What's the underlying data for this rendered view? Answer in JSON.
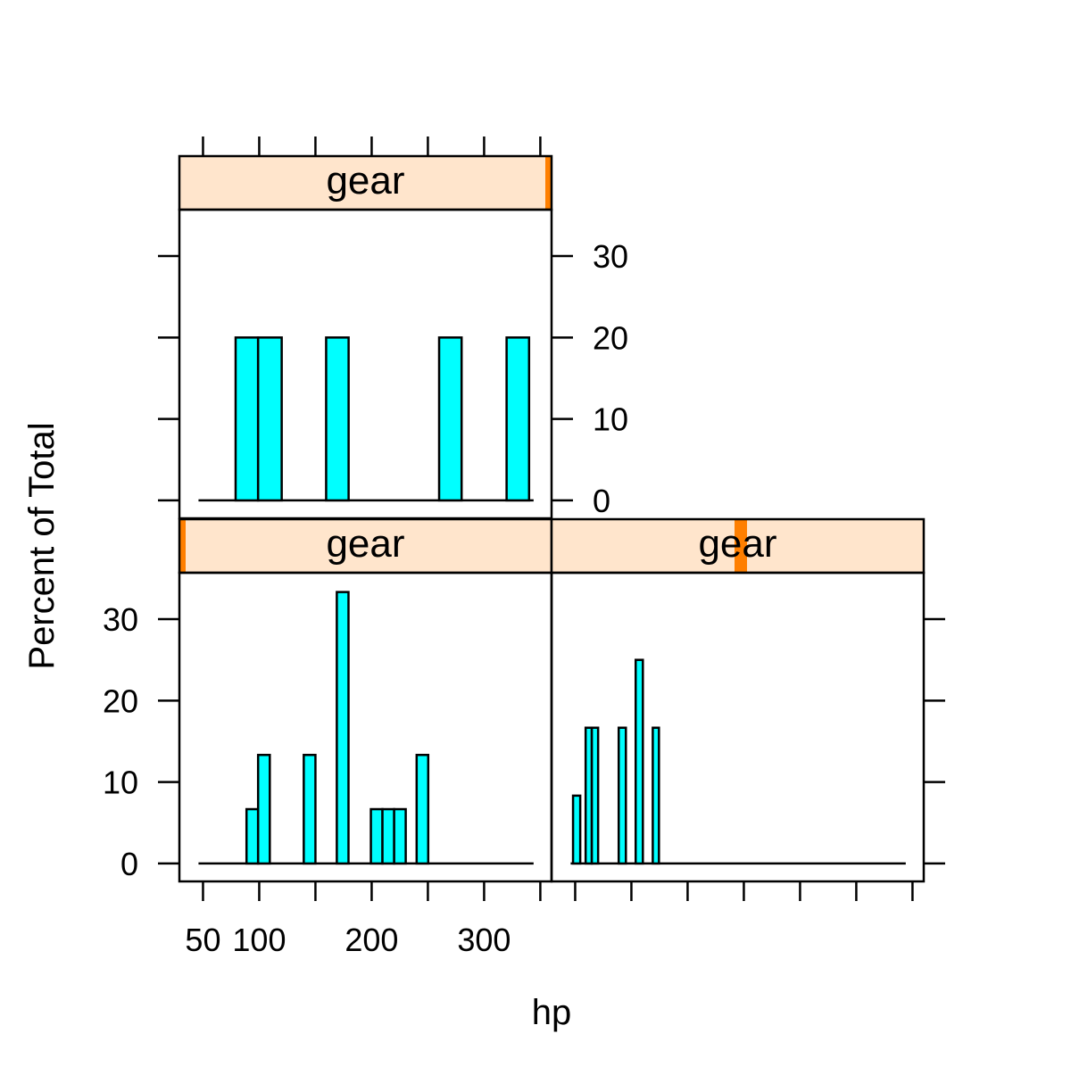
{
  "chart_data": {
    "type": "bar",
    "subtype": "histogram-trellis",
    "xlabel": "hp",
    "ylabel": "Percent of Total",
    "xlim": [
      29,
      360
    ],
    "ylim": [
      -2.2,
      35.7
    ],
    "x_ticks": [
      50,
      100,
      150,
      200,
      250,
      300,
      350
    ],
    "x_tick_labels": [
      "50",
      "100",
      "",
      "200",
      "",
      "300",
      ""
    ],
    "y_ticks": [
      0,
      10,
      20,
      30
    ],
    "y_tick_labels": [
      "0",
      "10",
      "20",
      "30"
    ],
    "colors": {
      "bar": "#00FFFF",
      "strip": "#FFE5CC",
      "strip_marker": "#FF7F00"
    },
    "panels": [
      {
        "strip": "gear",
        "level_fraction": 0.0,
        "position": "bottom-left",
        "bins": [
          {
            "from": 88.7,
            "to": 99,
            "value": 6.67
          },
          {
            "from": 99,
            "to": 109.4,
            "value": 13.33
          },
          {
            "from": 139.6,
            "to": 150,
            "value": 13.33
          },
          {
            "from": 169,
            "to": 179.4,
            "value": 33.33
          },
          {
            "from": 199.3,
            "to": 209.6,
            "value": 6.67
          },
          {
            "from": 209.6,
            "to": 220,
            "value": 6.67
          },
          {
            "from": 220,
            "to": 230.3,
            "value": 6.67
          },
          {
            "from": 240,
            "to": 250.3,
            "value": 13.33
          }
        ]
      },
      {
        "strip": "gear",
        "level_fraction": 0.5,
        "position": "bottom-right",
        "bins": [
          {
            "from": 48.1,
            "to": 54.5,
            "value": 8.33
          },
          {
            "from": 59.3,
            "to": 64.8,
            "value": 16.67
          },
          {
            "from": 64.8,
            "to": 70.4,
            "value": 16.67
          },
          {
            "from": 88.7,
            "to": 95.1,
            "value": 16.67
          },
          {
            "from": 103.8,
            "to": 110.2,
            "value": 25
          },
          {
            "from": 119,
            "to": 124.5,
            "value": 16.67
          }
        ]
      },
      {
        "strip": "gear",
        "level_fraction": 1.0,
        "position": "top-left",
        "bins": [
          {
            "from": 79,
            "to": 99,
            "value": 20
          },
          {
            "from": 99,
            "to": 120,
            "value": 20
          },
          {
            "from": 159.5,
            "to": 179.5,
            "value": 20
          },
          {
            "from": 260,
            "to": 280,
            "value": 20
          },
          {
            "from": 320,
            "to": 340,
            "value": 20
          }
        ]
      }
    ]
  }
}
